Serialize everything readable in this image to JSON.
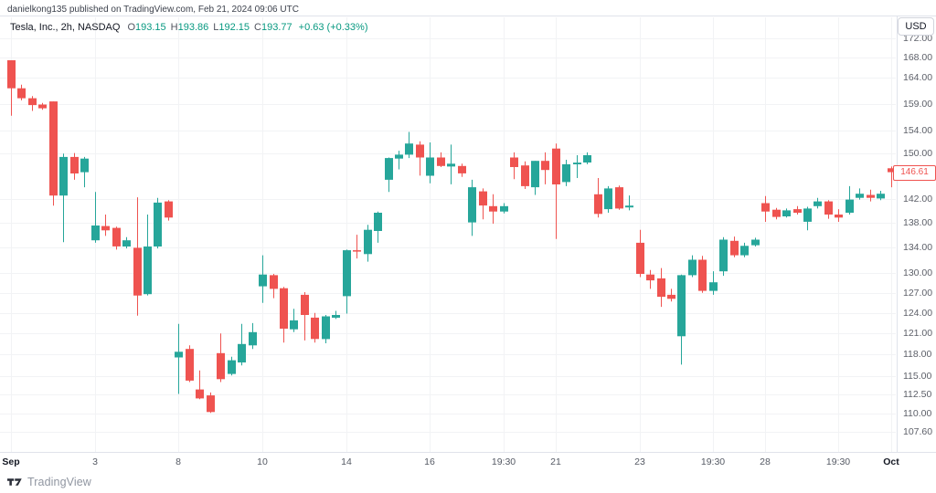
{
  "attribution": {
    "text": "danielkong135 published on TradingView.com, Feb 21, 2024 09:06 UTC"
  },
  "legend": {
    "title": "Tesla, Inc., 2h, NASDAQ",
    "open_label": "O",
    "open": "193.15",
    "high_label": "H",
    "high": "193.86",
    "low_label": "L",
    "low": "192.15",
    "close_label": "C",
    "close": "193.77",
    "change": "+0.63 (+0.33%)"
  },
  "price_axis": {
    "currency": "USD",
    "last_price": {
      "label": "146.61",
      "value": 146.61
    },
    "ticks": [
      {
        "label": "172.00",
        "price": 172
      },
      {
        "label": "168.00",
        "price": 168
      },
      {
        "label": "164.00",
        "price": 164
      },
      {
        "label": "159.00",
        "price": 159
      },
      {
        "label": "154.00",
        "price": 154
      },
      {
        "label": "150.00",
        "price": 150
      },
      {
        "label": "142.00",
        "price": 142
      },
      {
        "label": "138.00",
        "price": 138
      },
      {
        "label": "134.00",
        "price": 134
      },
      {
        "label": "130.00",
        "price": 130
      },
      {
        "label": "127.00",
        "price": 127
      },
      {
        "label": "124.00",
        "price": 124
      },
      {
        "label": "121.00",
        "price": 121
      },
      {
        "label": "118.00",
        "price": 118
      },
      {
        "label": "115.00",
        "price": 115
      },
      {
        "label": "112.50",
        "price": 112.5
      },
      {
        "label": "110.00",
        "price": 110
      },
      {
        "label": "107.60",
        "price": 107.6
      }
    ]
  },
  "time_axis": {
    "ticks": [
      {
        "label": "Sep",
        "i": 0,
        "strong": true
      },
      {
        "label": "3",
        "i": 8
      },
      {
        "label": "8",
        "i": 16
      },
      {
        "label": "10",
        "i": 24
      },
      {
        "label": "14",
        "i": 32
      },
      {
        "label": "16",
        "i": 40
      },
      {
        "label": "19:30",
        "i": 47
      },
      {
        "label": "21",
        "i": 52
      },
      {
        "label": "23",
        "i": 60
      },
      {
        "label": "19:30",
        "i": 67
      },
      {
        "label": "28",
        "i": 72
      },
      {
        "label": "19:30",
        "i": 79
      },
      {
        "label": "Oct",
        "i": 84,
        "strong": true
      }
    ]
  },
  "watermark": {
    "brand": "TradingView"
  },
  "colors": {
    "up": "#26a69a",
    "down": "#ef5350",
    "grid": "#f2f3f5",
    "tick_mark": "#b8bcc4",
    "value_text": "#089981",
    "last_price": "#ef5350",
    "title_text": "#131722",
    "border": "#e0e3eb"
  },
  "chart_data": {
    "type": "candlestick",
    "symbol": "Tesla, Inc.",
    "interval": "2h",
    "exchange": "NASDAQ",
    "scale": "log",
    "ylim": [
      106,
      174
    ],
    "x_range": [
      "Sep",
      "Oct"
    ],
    "grid": true,
    "candles_ohlc": [
      [
        167.5,
        167.5,
        156.8,
        162.0
      ],
      [
        162.0,
        162.7,
        159.7,
        160.1
      ],
      [
        160.1,
        160.5,
        157.7,
        158.8
      ],
      [
        158.9,
        159.2,
        157.9,
        158.2
      ],
      [
        159.5,
        159.5,
        140.9,
        142.6
      ],
      [
        142.6,
        149.9,
        134.9,
        149.3
      ],
      [
        149.3,
        150.0,
        145.3,
        146.4
      ],
      [
        146.6,
        149.3,
        144.0,
        149.0
      ],
      [
        135.2,
        143.2,
        134.8,
        137.6
      ],
      [
        137.5,
        139.4,
        135.9,
        136.8
      ],
      [
        137.2,
        137.4,
        133.7,
        134.2
      ],
      [
        134.2,
        135.7,
        133.9,
        135.2
      ],
      [
        134.0,
        142.3,
        123.6,
        126.6
      ],
      [
        126.8,
        139.4,
        126.6,
        134.2
      ],
      [
        134.2,
        142.2,
        133.9,
        141.4
      ],
      [
        141.6,
        141.8,
        138.4,
        138.9
      ],
      [
        117.6,
        122.4,
        112.6,
        118.4
      ],
      [
        118.8,
        119.3,
        114.2,
        114.4
      ],
      [
        113.2,
        115.8,
        111.9,
        112.0
      ],
      [
        112.4,
        112.8,
        110.1,
        110.2
      ],
      [
        118.2,
        121.0,
        114.2,
        114.6
      ],
      [
        115.3,
        117.7,
        115.1,
        117.2
      ],
      [
        116.9,
        122.4,
        116.5,
        119.5
      ],
      [
        119.3,
        122.5,
        118.8,
        121.2
      ],
      [
        128.0,
        132.8,
        125.5,
        129.8
      ],
      [
        129.7,
        129.9,
        126.2,
        127.6
      ],
      [
        127.7,
        127.9,
        119.7,
        121.7
      ],
      [
        121.6,
        124.6,
        121.2,
        122.9
      ],
      [
        126.7,
        127.1,
        120.0,
        123.7
      ],
      [
        123.3,
        124.0,
        119.7,
        120.2
      ],
      [
        120.2,
        123.7,
        119.6,
        123.5
      ],
      [
        123.3,
        124.3,
        123.1,
        123.7
      ],
      [
        126.5,
        133.7,
        123.9,
        133.6
      ],
      [
        133.6,
        136.1,
        132.3,
        133.4
      ],
      [
        133.0,
        137.7,
        131.8,
        136.9
      ],
      [
        136.7,
        139.9,
        134.8,
        139.7
      ],
      [
        145.3,
        149.2,
        143.2,
        149.1
      ],
      [
        149.0,
        150.4,
        147.1,
        149.7
      ],
      [
        149.7,
        153.8,
        149.1,
        151.7
      ],
      [
        151.5,
        152.1,
        146.0,
        149.2
      ],
      [
        146.0,
        151.9,
        144.7,
        149.2
      ],
      [
        149.2,
        150.1,
        147.5,
        147.7
      ],
      [
        147.6,
        151.5,
        144.5,
        148.1
      ],
      [
        147.7,
        148.1,
        145.8,
        146.4
      ],
      [
        138.1,
        145.3,
        135.9,
        144.0
      ],
      [
        143.3,
        143.8,
        138.6,
        140.9
      ],
      [
        140.8,
        142.8,
        137.9,
        139.9
      ],
      [
        139.9,
        141.3,
        139.6,
        140.8
      ],
      [
        149.2,
        150.1,
        145.4,
        147.5
      ],
      [
        147.8,
        148.5,
        143.7,
        144.2
      ],
      [
        144.0,
        148.6,
        142.7,
        148.6
      ],
      [
        148.6,
        150.1,
        144.5,
        147.0
      ],
      [
        150.8,
        151.7,
        135.4,
        144.5
      ],
      [
        144.9,
        148.8,
        144.2,
        148.0
      ],
      [
        148.0,
        149.6,
        145.6,
        148.3
      ],
      [
        148.3,
        150.1,
        148.0,
        149.6
      ],
      [
        142.8,
        145.6,
        138.9,
        139.5
      ],
      [
        140.3,
        144.2,
        139.7,
        143.8
      ],
      [
        144.0,
        144.3,
        140.2,
        140.4
      ],
      [
        140.6,
        142.6,
        140.1,
        140.9
      ],
      [
        134.8,
        136.9,
        129.4,
        129.9
      ],
      [
        129.8,
        130.5,
        127.6,
        128.9
      ],
      [
        129.2,
        130.8,
        124.9,
        126.4
      ],
      [
        126.7,
        127.6,
        125.7,
        126.1
      ],
      [
        120.6,
        129.8,
        116.6,
        129.7
      ],
      [
        129.7,
        132.8,
        129.4,
        132.1
      ],
      [
        132.1,
        132.7,
        127.0,
        127.3
      ],
      [
        127.3,
        130.3,
        126.7,
        128.6
      ],
      [
        130.3,
        135.7,
        129.6,
        135.3
      ],
      [
        135.1,
        135.8,
        132.5,
        132.8
      ],
      [
        132.8,
        134.8,
        132.5,
        134.3
      ],
      [
        134.4,
        135.6,
        134.2,
        135.3
      ],
      [
        141.3,
        142.5,
        138.2,
        139.9
      ],
      [
        140.2,
        140.5,
        138.6,
        139.0
      ],
      [
        139.1,
        140.4,
        138.9,
        140.1
      ],
      [
        140.3,
        140.8,
        139.4,
        139.7
      ],
      [
        138.2,
        140.7,
        136.8,
        140.4
      ],
      [
        140.8,
        142.2,
        140.4,
        141.6
      ],
      [
        141.6,
        141.8,
        138.7,
        139.4
      ],
      [
        139.4,
        140.3,
        138.2,
        138.9
      ],
      [
        139.7,
        144.2,
        139.4,
        141.9
      ],
      [
        142.2,
        143.8,
        141.9,
        142.9
      ],
      [
        142.7,
        143.6,
        141.6,
        142.2
      ],
      [
        142.1,
        143.4,
        141.8,
        142.9
      ],
      [
        147.3,
        147.6,
        144.0,
        146.61
      ]
    ]
  }
}
